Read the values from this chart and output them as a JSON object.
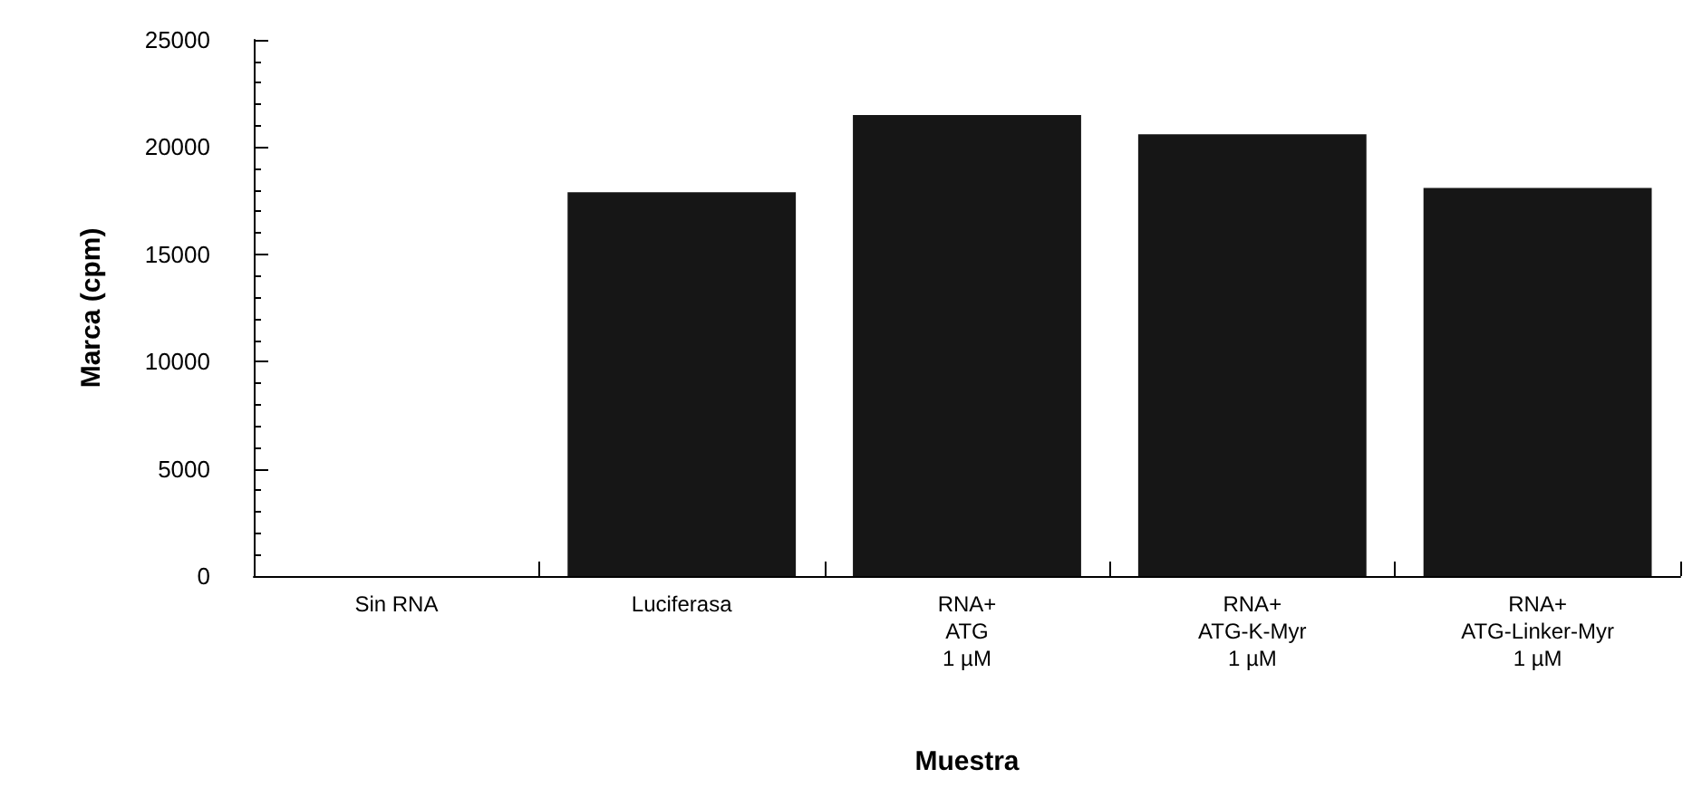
{
  "chart_data": {
    "type": "bar",
    "xlabel": "Muestra",
    "ylabel": "Marca (cpm)",
    "categories": [
      "Sin RNA",
      "Luciferasa",
      "RNA+\nATG\n1 µM",
      "RNA+\nATG-K-Myr\n1 µM",
      "RNA+\nATG-Linker-Myr\n1 µM"
    ],
    "values": [
      0,
      17900,
      21500,
      20600,
      18100
    ],
    "color": "#161616",
    "ylim": [
      0,
      25000
    ],
    "yticks": [
      0,
      5000,
      10000,
      15000,
      20000,
      25000
    ],
    "grid": false
  }
}
